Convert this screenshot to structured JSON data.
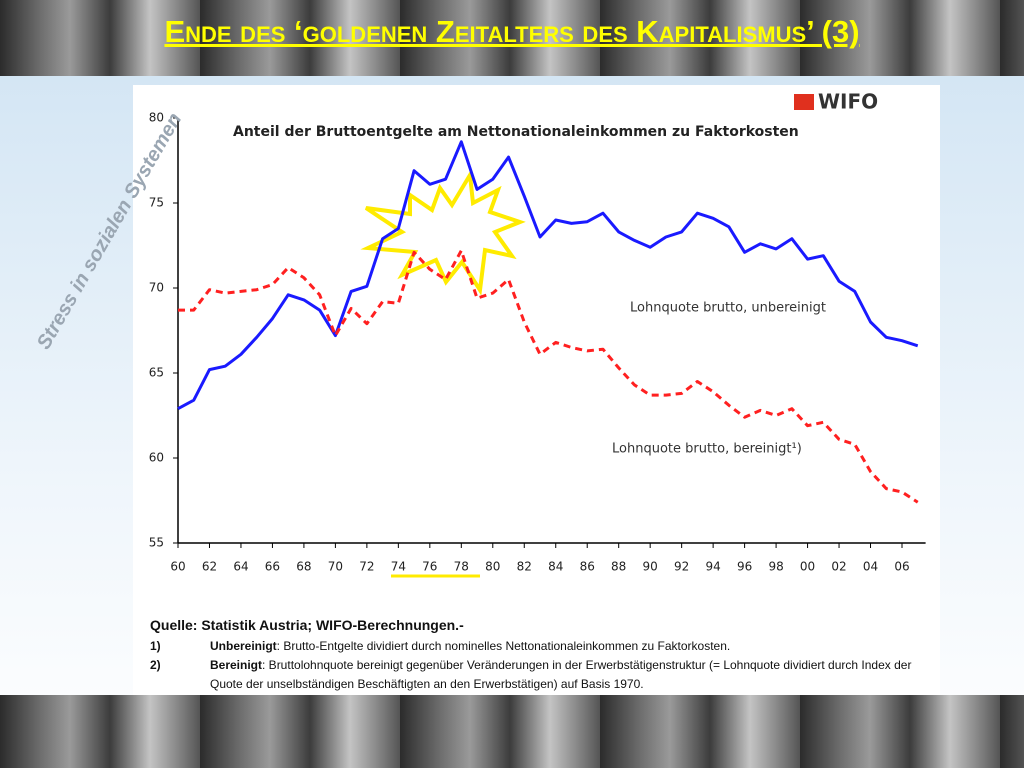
{
  "slide_title": "Ende des ‘goldenen Zeitalters des Kapitalismus’ (3)",
  "side_text": "Stress in sozialen Systemen",
  "logo": "WIFO",
  "chart_data": {
    "type": "line",
    "title": "Anteil der Bruttoentgelte am Nettonationaleinkommen zu Faktorkosten",
    "x": [
      1960,
      1961,
      1962,
      1963,
      1964,
      1965,
      1966,
      1967,
      1968,
      1969,
      1970,
      1971,
      1972,
      1973,
      1974,
      1975,
      1976,
      1977,
      1978,
      1979,
      1980,
      1981,
      1982,
      1983,
      1984,
      1985,
      1986,
      1987,
      1988,
      1989,
      1990,
      1991,
      1992,
      1993,
      1994,
      1995,
      1996,
      1997,
      1998,
      1999,
      2000,
      2001,
      2002,
      2003,
      2004,
      2005,
      2006,
      2007
    ],
    "series": [
      {
        "name": "Lohnquote brutto, unbereinigt",
        "color": "#1a1aff",
        "dashed": false,
        "values": [
          62.9,
          63.4,
          65.2,
          65.4,
          66.1,
          67.1,
          68.2,
          69.6,
          69.3,
          68.7,
          67.2,
          69.8,
          70.1,
          72.9,
          73.5,
          76.9,
          76.1,
          76.4,
          78.6,
          75.8,
          76.4,
          77.7,
          75.4,
          73.0,
          74.0,
          73.8,
          73.9,
          74.4,
          73.3,
          72.8,
          72.4,
          73.0,
          73.3,
          74.4,
          74.1,
          73.6,
          72.1,
          72.6,
          72.3,
          72.9,
          71.7,
          71.9,
          70.4,
          69.8,
          68.0,
          67.1,
          66.9,
          66.6
        ]
      },
      {
        "name": "Lohnquote brutto, bereinigt¹)",
        "color": "#ff2020",
        "dashed": true,
        "values": [
          68.7,
          68.7,
          69.9,
          69.7,
          69.8,
          69.9,
          70.2,
          71.2,
          70.6,
          69.6,
          67.2,
          68.8,
          67.9,
          69.2,
          69.1,
          72.1,
          71.1,
          70.5,
          72.2,
          69.4,
          69.7,
          70.5,
          68.0,
          66.1,
          66.8,
          66.5,
          66.3,
          66.4,
          65.3,
          64.3,
          63.7,
          63.7,
          63.8,
          64.5,
          63.9,
          63.1,
          62.4,
          62.8,
          62.5,
          62.9,
          61.9,
          62.1,
          61.1,
          60.8,
          59.2,
          58.2,
          58.0,
          57.4
        ]
      }
    ],
    "xlim": [
      1960,
      2007.5
    ],
    "ylim": [
      55,
      80
    ],
    "yticks": [
      55,
      60,
      65,
      70,
      75,
      80
    ],
    "xticks": [
      {
        "value": 1960,
        "label": "60"
      },
      {
        "value": 1962,
        "label": "62"
      },
      {
        "value": 1964,
        "label": "64"
      },
      {
        "value": 1966,
        "label": "66"
      },
      {
        "value": 1968,
        "label": "68"
      },
      {
        "value": 1970,
        "label": "70"
      },
      {
        "value": 1972,
        "label": "72"
      },
      {
        "value": 1974,
        "label": "74"
      },
      {
        "value": 1976,
        "label": "76"
      },
      {
        "value": 1978,
        "label": "78"
      },
      {
        "value": 1980,
        "label": "80"
      },
      {
        "value": 1982,
        "label": "82"
      },
      {
        "value": 1984,
        "label": "84"
      },
      {
        "value": 1986,
        "label": "86"
      },
      {
        "value": 1988,
        "label": "88"
      },
      {
        "value": 1990,
        "label": "90"
      },
      {
        "value": 1992,
        "label": "92"
      },
      {
        "value": 1994,
        "label": "94"
      },
      {
        "value": 1996,
        "label": "96"
      },
      {
        "value": 1998,
        "label": "98"
      },
      {
        "value": 2000,
        "label": "00"
      },
      {
        "value": 2002,
        "label": "02"
      },
      {
        "value": 2004,
        "label": "04"
      },
      {
        "value": 2006,
        "label": "06"
      }
    ],
    "grid": false
  },
  "source": {
    "line": "Quelle: Statistik Austria; WIFO-Berechnungen.-",
    "notes": [
      {
        "marker": "1)",
        "term": "Unbereinigt",
        "text": ": Brutto-Entgelte dividiert durch nominelles Nettonationaleinkommen zu Faktorkosten."
      },
      {
        "marker": "2)",
        "term": "Bereinigt",
        "text": ": Bruttolohnquote bereinigt gegenüber Veränderungen in der Erwerbstätigenstruktur (= Lohnquote dividiert durch Index der Quote der unselbständigen Beschäftigten an den Erwerbstätigen) auf Basis 1970."
      }
    ]
  }
}
